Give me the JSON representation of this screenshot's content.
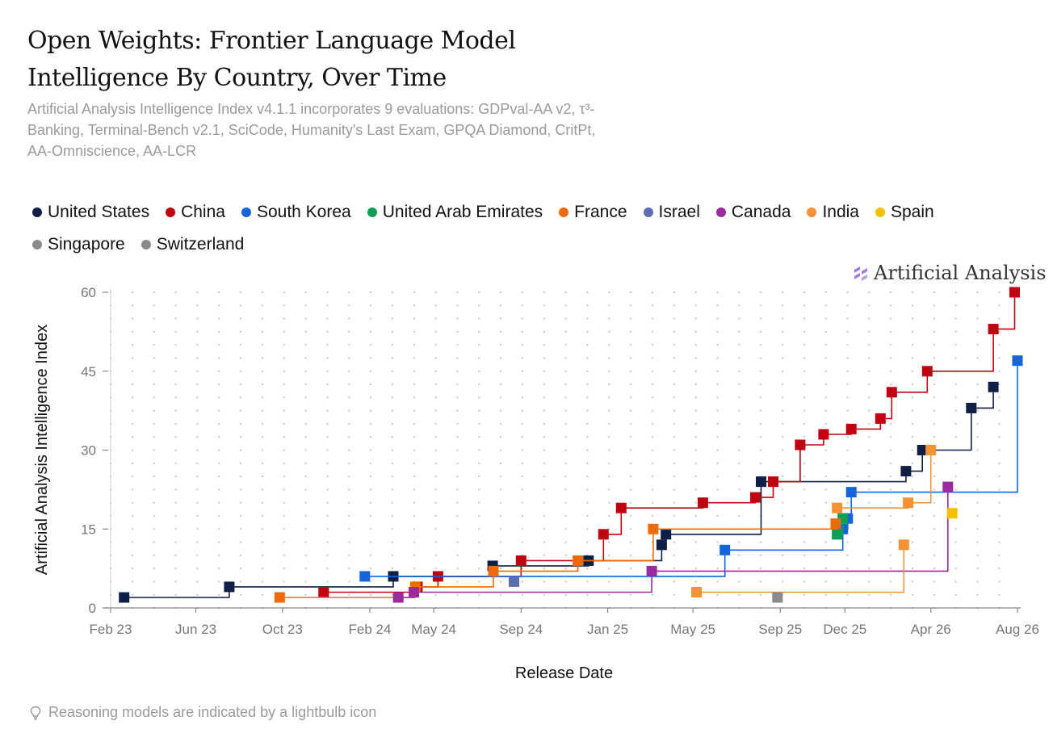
{
  "chart_data": {
    "type": "line",
    "step": true,
    "title": "Open Weights: Frontier Language Model Intelligence By Country, Over Time",
    "subtitle": "Artificial Analysis Intelligence Index v4.1.1 incorporates 9 evaluations: GDPval-AA v2, τ³-Banking, Terminal-Bench v2.1, SciCode, Humanity's Last Exam, GPQA Diamond, CritPt, AA-Omniscience, AA-LCR",
    "xlabel": "Release Date",
    "ylabel": "Artificial Analysis Intelligence Index",
    "ylim": [
      0,
      60
    ],
    "yticks": [
      "0",
      "15",
      "30",
      "45",
      "60"
    ],
    "xlim": [
      "2023-02-01",
      "2026-08-01"
    ],
    "xticks": [
      {
        "date": "2023-02-01",
        "label": "Feb 23"
      },
      {
        "date": "2023-06-01",
        "label": "Jun 23"
      },
      {
        "date": "2023-10-01",
        "label": "Oct 23"
      },
      {
        "date": "2024-02-01",
        "label": "Feb 24"
      },
      {
        "date": "2024-05-01",
        "label": "May 24"
      },
      {
        "date": "2024-09-01",
        "label": "Sep 24"
      },
      {
        "date": "2025-01-01",
        "label": "Jan 25"
      },
      {
        "date": "2025-05-01",
        "label": "May 25"
      },
      {
        "date": "2025-09-01",
        "label": "Sep 25"
      },
      {
        "date": "2025-12-01",
        "label": "Dec 25"
      },
      {
        "date": "2026-04-01",
        "label": "Apr 26"
      },
      {
        "date": "2026-08-01",
        "label": "Aug 26"
      }
    ],
    "grid": "dotted",
    "legend_position": "top",
    "series": [
      {
        "name": "United States",
        "color": "#0f1f45",
        "points": [
          {
            "x": "2023-02-20",
            "y": 2
          },
          {
            "x": "2023-07-18",
            "y": 4
          },
          {
            "x": "2024-03-05",
            "y": 6
          },
          {
            "x": "2024-07-23",
            "y": 8
          },
          {
            "x": "2024-12-05",
            "y": 9
          },
          {
            "x": "2025-03-18",
            "y": 12
          },
          {
            "x": "2025-03-24",
            "y": 14
          },
          {
            "x": "2025-08-05",
            "y": 24
          },
          {
            "x": "2026-02-25",
            "y": 26
          },
          {
            "x": "2026-03-20",
            "y": 30
          },
          {
            "x": "2026-05-28",
            "y": 38
          },
          {
            "x": "2026-06-28",
            "y": 42
          }
        ]
      },
      {
        "name": "China",
        "color": "#c00010",
        "points": [
          {
            "x": "2023-11-28",
            "y": 3
          },
          {
            "x": "2024-04-08",
            "y": 4
          },
          {
            "x": "2024-05-07",
            "y": 6
          },
          {
            "x": "2024-09-01",
            "y": 9
          },
          {
            "x": "2024-12-26",
            "y": 14
          },
          {
            "x": "2025-01-20",
            "y": 19
          },
          {
            "x": "2025-05-15",
            "y": 20
          },
          {
            "x": "2025-07-28",
            "y": 21
          },
          {
            "x": "2025-08-22",
            "y": 24
          },
          {
            "x": "2025-09-29",
            "y": 31
          },
          {
            "x": "2025-11-01",
            "y": 33
          },
          {
            "x": "2025-12-10",
            "y": 34
          },
          {
            "x": "2026-01-20",
            "y": 36
          },
          {
            "x": "2026-02-05",
            "y": 41
          },
          {
            "x": "2026-03-27",
            "y": 45
          },
          {
            "x": "2026-06-28",
            "y": 53
          },
          {
            "x": "2026-07-28",
            "y": 60
          }
        ]
      },
      {
        "name": "South Korea",
        "color": "#1565d8",
        "points": [
          {
            "x": "2024-01-25",
            "y": 6
          },
          {
            "x": "2025-06-15",
            "y": 11
          },
          {
            "x": "2025-11-28",
            "y": 15
          },
          {
            "x": "2025-12-05",
            "y": 17
          },
          {
            "x": "2025-12-10",
            "y": 22
          },
          {
            "x": "2026-08-01",
            "y": 47
          }
        ]
      },
      {
        "name": "United Arab Emirates",
        "color": "#0e9f57",
        "points": [
          {
            "x": "2025-11-20",
            "y": 14
          },
          {
            "x": "2025-11-28",
            "y": 17
          }
        ]
      },
      {
        "name": "France",
        "color": "#f06a0a",
        "points": [
          {
            "x": "2023-09-27",
            "y": 2
          },
          {
            "x": "2024-04-05",
            "y": 4
          },
          {
            "x": "2024-07-24",
            "y": 7
          },
          {
            "x": "2024-11-20",
            "y": 9
          },
          {
            "x": "2025-03-06",
            "y": 15
          },
          {
            "x": "2025-11-18",
            "y": 16
          }
        ]
      },
      {
        "name": "Israel",
        "color": "#5b6eb3",
        "points": [
          {
            "x": "2024-08-22",
            "y": 5
          }
        ]
      },
      {
        "name": "Canada",
        "color": "#9b2a9c",
        "points": [
          {
            "x": "2024-03-12",
            "y": 2
          },
          {
            "x": "2024-04-03",
            "y": 3
          },
          {
            "x": "2025-03-04",
            "y": 7
          },
          {
            "x": "2026-04-25",
            "y": 23
          }
        ]
      },
      {
        "name": "India",
        "color": "#f59234",
        "points": [
          {
            "x": "2025-05-06",
            "y": 3
          },
          {
            "x": "2026-02-22",
            "y": 12
          }
        ]
      },
      {
        "name": "Spain",
        "color": "#f5c000",
        "points": [
          {
            "x": "2026-05-01",
            "y": 18
          }
        ]
      },
      {
        "name": "Singapore",
        "color": "#8a8a8a",
        "points": [
          {
            "x": "2025-08-28",
            "y": 2
          }
        ]
      },
      {
        "name": "Switzerland",
        "color": "#8a8a8a",
        "points": []
      }
    ],
    "extra_series": [
      {
        "name": "India",
        "color": "#f59234",
        "points": [
          {
            "x": "2025-11-20",
            "y": 19
          },
          {
            "x": "2026-02-28",
            "y": 20
          },
          {
            "x": "2026-04-01",
            "y": 30
          }
        ]
      }
    ]
  },
  "brand": {
    "name": "Artificial Analysis"
  },
  "footnote": {
    "text": "Reasoning models are indicated by a lightbulb icon",
    "icon": "lightbulb-icon"
  }
}
